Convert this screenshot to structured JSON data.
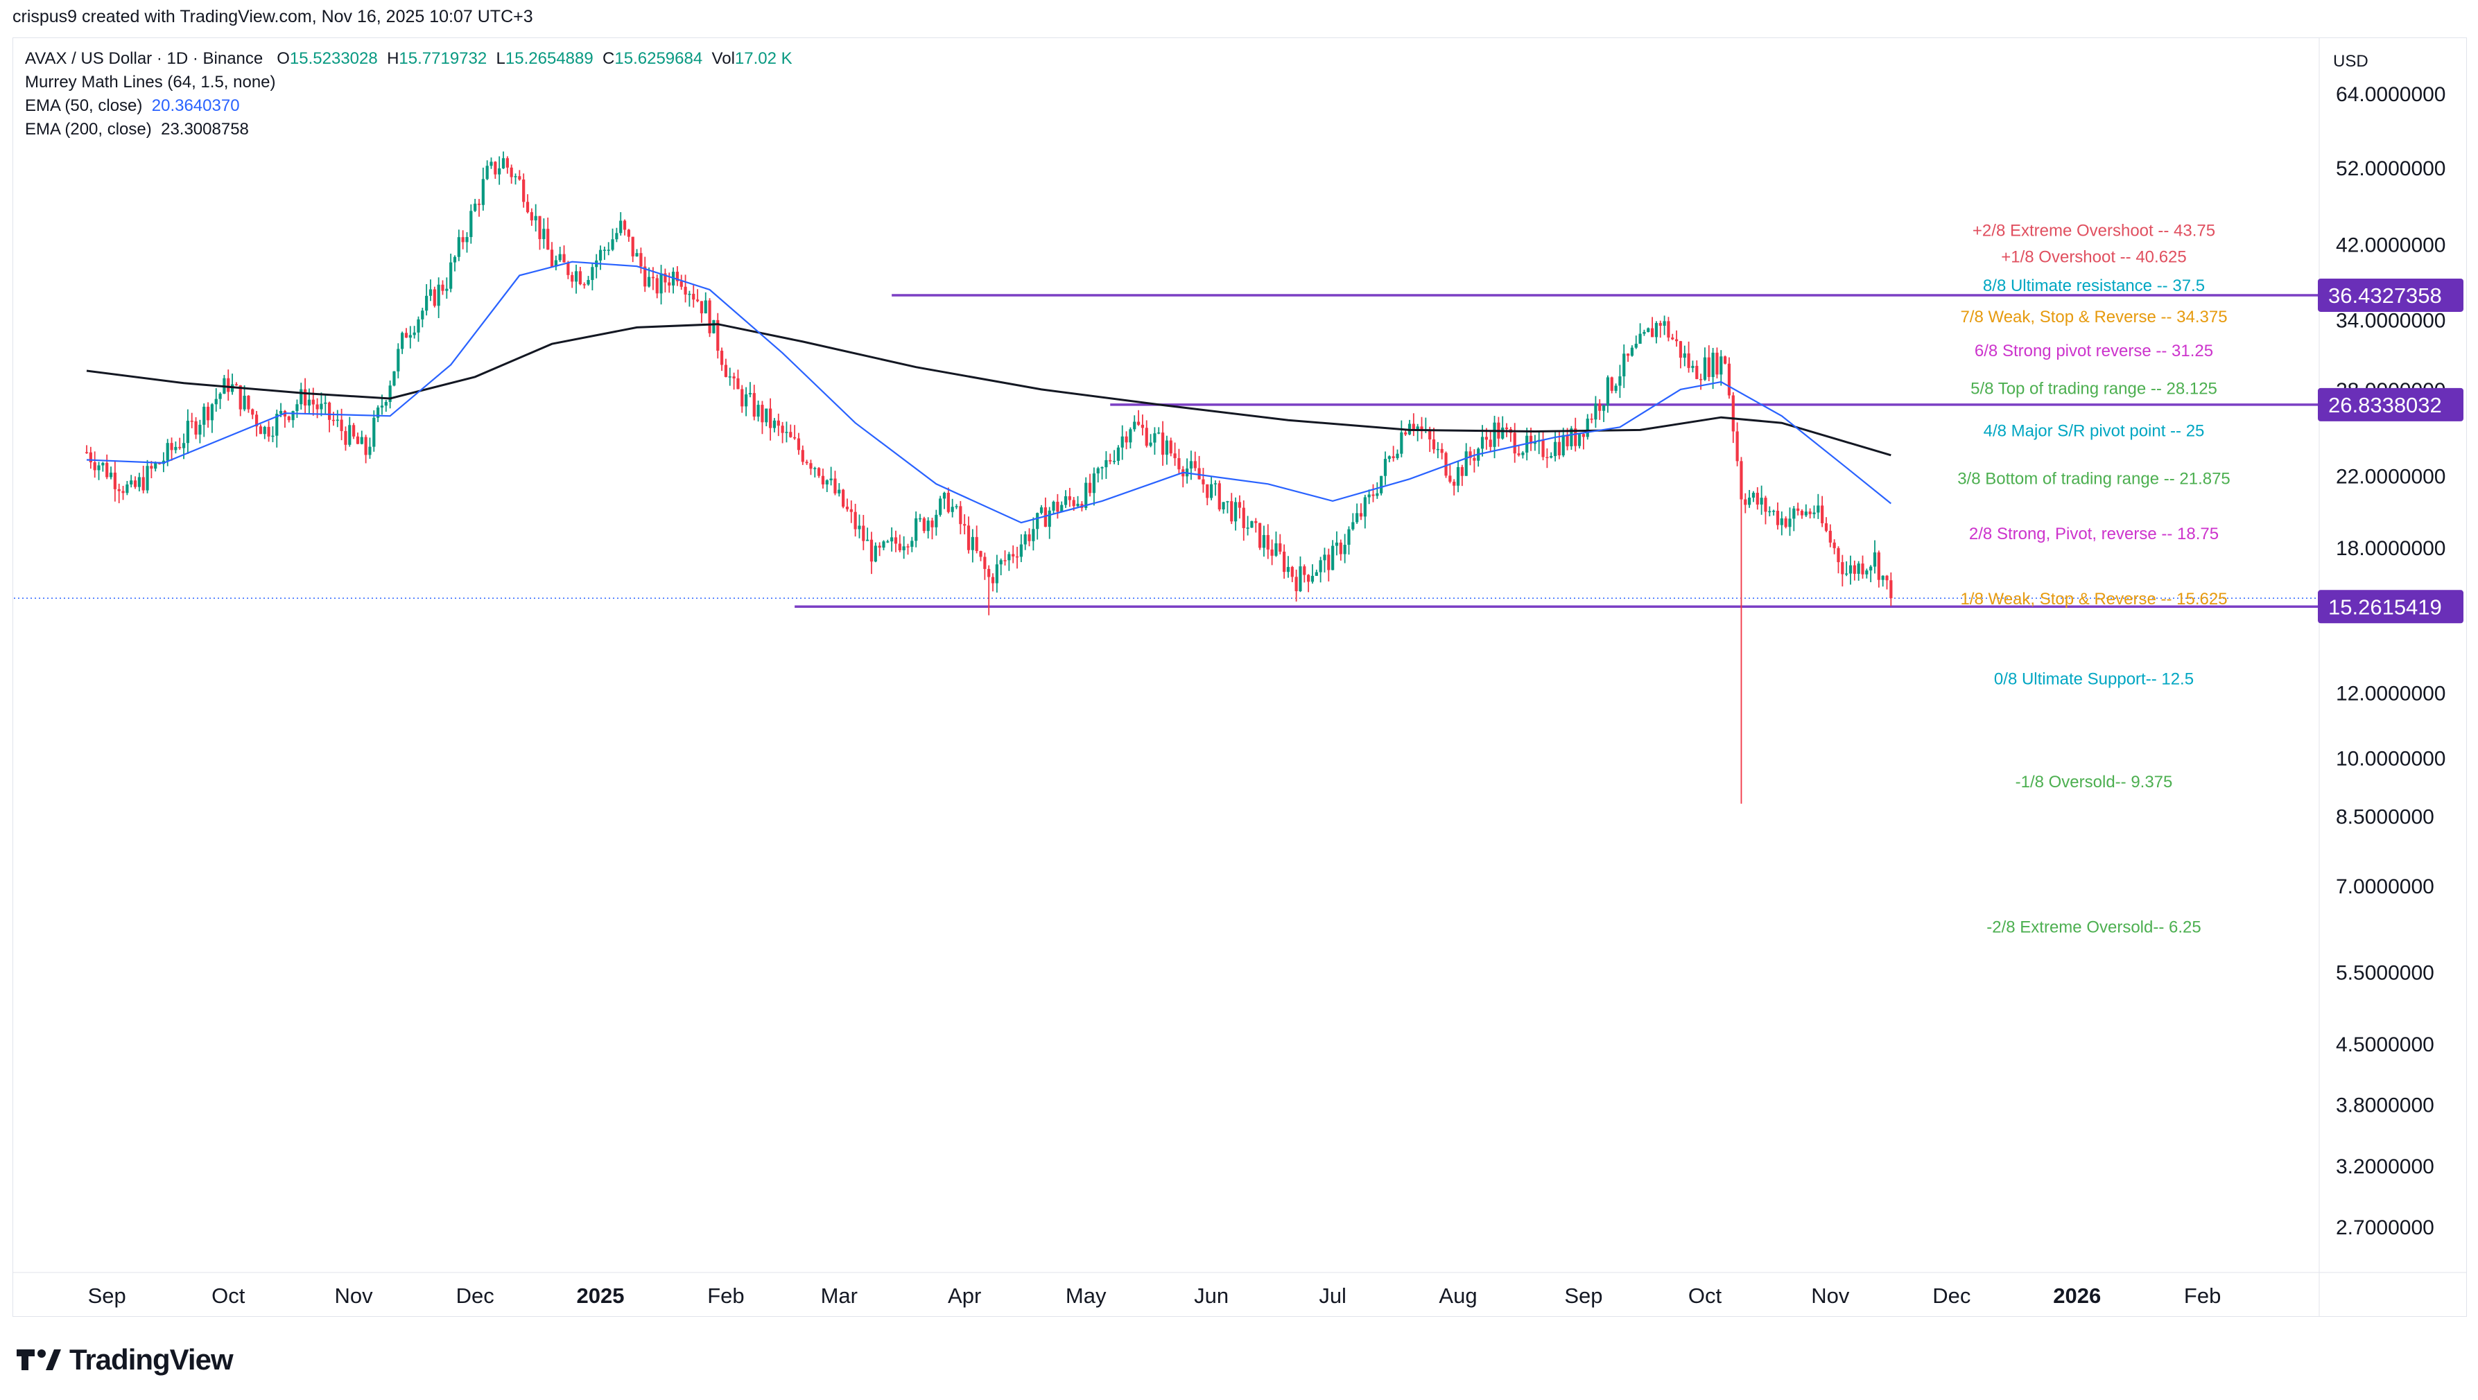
{
  "header": {
    "text": "crispus9 created with TradingView.com, Nov 16, 2025 10:07 UTC+3"
  },
  "legend": {
    "symbol": "AVAX / US Dollar · 1D · Binance",
    "ohlc": {
      "o_label": "O",
      "o": "15.5233028",
      "h_label": "H",
      "h": "15.7719732",
      "l_label": "L",
      "l": "15.2654889",
      "c_label": "C",
      "c": "15.6259684",
      "vol_label": "Vol",
      "vol": "17.02 K"
    },
    "murrey": "Murrey Math Lines (64, 1.5, none)",
    "ema50_label": "EMA (50, close)",
    "ema50_value": "20.3640370",
    "ema200_label": "EMA (200, close)",
    "ema200_value": "23.3008758"
  },
  "brand": {
    "name": "TradingView"
  },
  "colors": {
    "up": "#089981",
    "down": "#f23645",
    "ema50": "#2962ff",
    "ema200": "#131722",
    "hline": "#7b3fc4",
    "tag_bg": "#6a2fb8"
  },
  "chart_data": {
    "type": "candlestick",
    "currency": "USD",
    "y_scale": "log",
    "y_ticks": [
      "64.0000000",
      "52.0000000",
      "42.0000000",
      "34.0000000",
      "28.0000000",
      "22.0000000",
      "18.0000000",
      "12.0000000",
      "10.0000000",
      "8.5000000",
      "7.0000000",
      "5.5000000",
      "4.5000000",
      "3.8000000",
      "3.2000000",
      "2.7000000"
    ],
    "y_tick_values": [
      64,
      52,
      42,
      34,
      28,
      22,
      18,
      12,
      10,
      8.5,
      7,
      5.5,
      4.5,
      3.8,
      3.2,
      2.7
    ],
    "x_ticks": [
      {
        "label": "Sep",
        "date": "2024-09-01",
        "bold": false
      },
      {
        "label": "Oct",
        "date": "2024-10-01",
        "bold": false
      },
      {
        "label": "Nov",
        "date": "2024-11-01",
        "bold": false
      },
      {
        "label": "Dec",
        "date": "2024-12-01",
        "bold": false
      },
      {
        "label": "2025",
        "date": "2025-01-01",
        "bold": true
      },
      {
        "label": "Feb",
        "date": "2025-02-01",
        "bold": false
      },
      {
        "label": "Mar",
        "date": "2025-03-01",
        "bold": false
      },
      {
        "label": "Apr",
        "date": "2025-04-01",
        "bold": false
      },
      {
        "label": "May",
        "date": "2025-05-01",
        "bold": false
      },
      {
        "label": "Jun",
        "date": "2025-06-01",
        "bold": false
      },
      {
        "label": "Jul",
        "date": "2025-07-01",
        "bold": false
      },
      {
        "label": "Aug",
        "date": "2025-08-01",
        "bold": false
      },
      {
        "label": "Sep",
        "date": "2025-09-01",
        "bold": false
      },
      {
        "label": "Oct",
        "date": "2025-10-01",
        "bold": false
      },
      {
        "label": "Nov",
        "date": "2025-11-01",
        "bold": false
      },
      {
        "label": "Dec",
        "date": "2025-12-01",
        "bold": false
      },
      {
        "label": "2026",
        "date": "2026-01-01",
        "bold": true
      },
      {
        "label": "Feb",
        "date": "2026-02-01",
        "bold": false
      }
    ],
    "price_tags": [
      {
        "label": "36.4327358",
        "value": 36.4327358,
        "line_start": "2025-03-14"
      },
      {
        "label": "26.8338032",
        "value": 26.8338032,
        "line_start": "2025-05-07"
      },
      {
        "label": "15.2615419",
        "value": 15.2615419,
        "line_start": "2025-02-18"
      }
    ],
    "current_price": 15.6259684,
    "murrey_levels": [
      {
        "text": "+2/8 Extreme Overshoot --  43.75",
        "value": 43.75,
        "color": "#e04f5f"
      },
      {
        "text": "+1/8 Overshoot --  40.625",
        "value": 40.625,
        "color": "#e04f5f"
      },
      {
        "text": "8/8 Ultimate resistance --  37.5",
        "value": 37.5,
        "color": "#00a6c2"
      },
      {
        "text": "7/8 Weak, Stop & Reverse --  34.375",
        "value": 34.375,
        "color": "#e69a0e"
      },
      {
        "text": "6/8 Strong pivot reverse --  31.25",
        "value": 31.25,
        "color": "#cc33cc"
      },
      {
        "text": "5/8 Top of trading range --  28.125",
        "value": 28.125,
        "color": "#4caf50"
      },
      {
        "text": "4/8 Major S/R pivot point --  25",
        "value": 25,
        "color": "#00a6c2"
      },
      {
        "text": "3/8 Bottom of trading range --  21.875",
        "value": 21.875,
        "color": "#4caf50"
      },
      {
        "text": "2/8 Strong, Pivot, reverse --  18.75",
        "value": 18.75,
        "color": "#cc33cc"
      },
      {
        "text": "1/8 Weak, Stop & Reverse --  15.625",
        "value": 15.625,
        "color": "#e69a0e"
      },
      {
        "text": "0/8 Ultimate Support--  12.5",
        "value": 12.5,
        "color": "#00a6c2"
      },
      {
        "text": "-1/8 Oversold--  9.375",
        "value": 9.375,
        "color": "#4caf50"
      },
      {
        "text": "-2/8 Extreme Oversold--  6.25",
        "value": 6.25,
        "color": "#4caf50"
      }
    ],
    "close_series": {
      "start": "2024-08-27",
      "end": "2025-11-16",
      "anchors": [
        [
          "2024-08-27",
          23.5
        ],
        [
          "2024-09-07",
          21.0
        ],
        [
          "2024-09-20",
          24.5
        ],
        [
          "2024-10-01",
          28.5
        ],
        [
          "2024-10-10",
          25.0
        ],
        [
          "2024-10-20",
          27.5
        ],
        [
          "2024-11-04",
          23.5
        ],
        [
          "2024-11-14",
          33.0
        ],
        [
          "2024-11-24",
          38.0
        ],
        [
          "2024-12-04",
          51.0
        ],
        [
          "2024-12-08",
          53.0
        ],
        [
          "2024-12-13",
          49.0
        ],
        [
          "2024-12-20",
          40.0
        ],
        [
          "2024-12-28",
          38.5
        ],
        [
          "2025-01-06",
          44.0
        ],
        [
          "2025-01-14",
          37.0
        ],
        [
          "2025-01-20",
          39.0
        ],
        [
          "2025-01-27",
          35.0
        ],
        [
          "2025-02-03",
          28.0
        ],
        [
          "2025-02-10",
          26.0
        ],
        [
          "2025-02-24",
          22.5
        ],
        [
          "2025-03-10",
          17.5
        ],
        [
          "2025-03-20",
          19.0
        ],
        [
          "2025-03-28",
          20.5
        ],
        [
          "2025-04-07",
          16.5
        ],
        [
          "2025-04-22",
          20.0
        ],
        [
          "2025-05-02",
          21.0
        ],
        [
          "2025-05-12",
          25.5
        ],
        [
          "2025-05-20",
          24.0
        ],
        [
          "2025-05-28",
          22.0
        ],
        [
          "2025-06-06",
          20.0
        ],
        [
          "2025-06-18",
          17.5
        ],
        [
          "2025-06-22",
          16.5
        ],
        [
          "2025-07-01",
          17.5
        ],
        [
          "2025-07-10",
          20.5
        ],
        [
          "2025-07-20",
          26.0
        ],
        [
          "2025-07-31",
          22.0
        ],
        [
          "2025-08-10",
          25.0
        ],
        [
          "2025-08-20",
          23.5
        ],
        [
          "2025-08-30",
          24.5
        ],
        [
          "2025-09-10",
          29.5
        ],
        [
          "2025-09-20",
          34.0
        ],
        [
          "2025-09-28",
          29.5
        ],
        [
          "2025-10-06",
          30.5
        ],
        [
          "2025-10-10",
          21.0
        ],
        [
          "2025-10-20",
          19.5
        ],
        [
          "2025-10-28",
          20.0
        ],
        [
          "2025-11-05",
          16.8
        ],
        [
          "2025-11-12",
          17.5
        ],
        [
          "2025-11-16",
          15.63
        ]
      ],
      "spikes": [
        [
          "2025-10-10",
          8.8
        ],
        [
          "2025-04-07",
          14.9
        ]
      ]
    },
    "ema50": [
      [
        "2024-08-27",
        23.0
      ],
      [
        "2024-09-15",
        22.8
      ],
      [
        "2024-10-15",
        26.2
      ],
      [
        "2024-11-10",
        26.0
      ],
      [
        "2024-11-25",
        30.0
      ],
      [
        "2024-12-12",
        38.5
      ],
      [
        "2024-12-25",
        40.0
      ],
      [
        "2025-01-10",
        39.5
      ],
      [
        "2025-01-28",
        37.0
      ],
      [
        "2025-02-15",
        31.0
      ],
      [
        "2025-03-05",
        25.5
      ],
      [
        "2025-03-25",
        21.5
      ],
      [
        "2025-04-15",
        19.3
      ],
      [
        "2025-05-05",
        20.5
      ],
      [
        "2025-05-25",
        22.2
      ],
      [
        "2025-06-15",
        21.5
      ],
      [
        "2025-07-01",
        20.5
      ],
      [
        "2025-07-20",
        21.8
      ],
      [
        "2025-08-05",
        23.3
      ],
      [
        "2025-08-25",
        24.5
      ],
      [
        "2025-09-10",
        25.2
      ],
      [
        "2025-09-25",
        28.0
      ],
      [
        "2025-10-05",
        28.6
      ],
      [
        "2025-10-20",
        26.0
      ],
      [
        "2025-11-05",
        22.5
      ],
      [
        "2025-11-16",
        20.36
      ]
    ],
    "ema200": [
      [
        "2024-08-27",
        29.5
      ],
      [
        "2024-09-20",
        28.5
      ],
      [
        "2024-10-20",
        27.7
      ],
      [
        "2024-11-10",
        27.3
      ],
      [
        "2024-12-01",
        29.0
      ],
      [
        "2024-12-20",
        31.8
      ],
      [
        "2025-01-10",
        33.3
      ],
      [
        "2025-01-30",
        33.6
      ],
      [
        "2025-02-20",
        32.0
      ],
      [
        "2025-03-20",
        29.8
      ],
      [
        "2025-04-20",
        28.0
      ],
      [
        "2025-05-20",
        26.8
      ],
      [
        "2025-06-20",
        25.7
      ],
      [
        "2025-07-20",
        25.0
      ],
      [
        "2025-08-20",
        24.9
      ],
      [
        "2025-09-15",
        25.0
      ],
      [
        "2025-10-05",
        25.9
      ],
      [
        "2025-10-20",
        25.5
      ],
      [
        "2025-11-16",
        23.3
      ]
    ]
  }
}
